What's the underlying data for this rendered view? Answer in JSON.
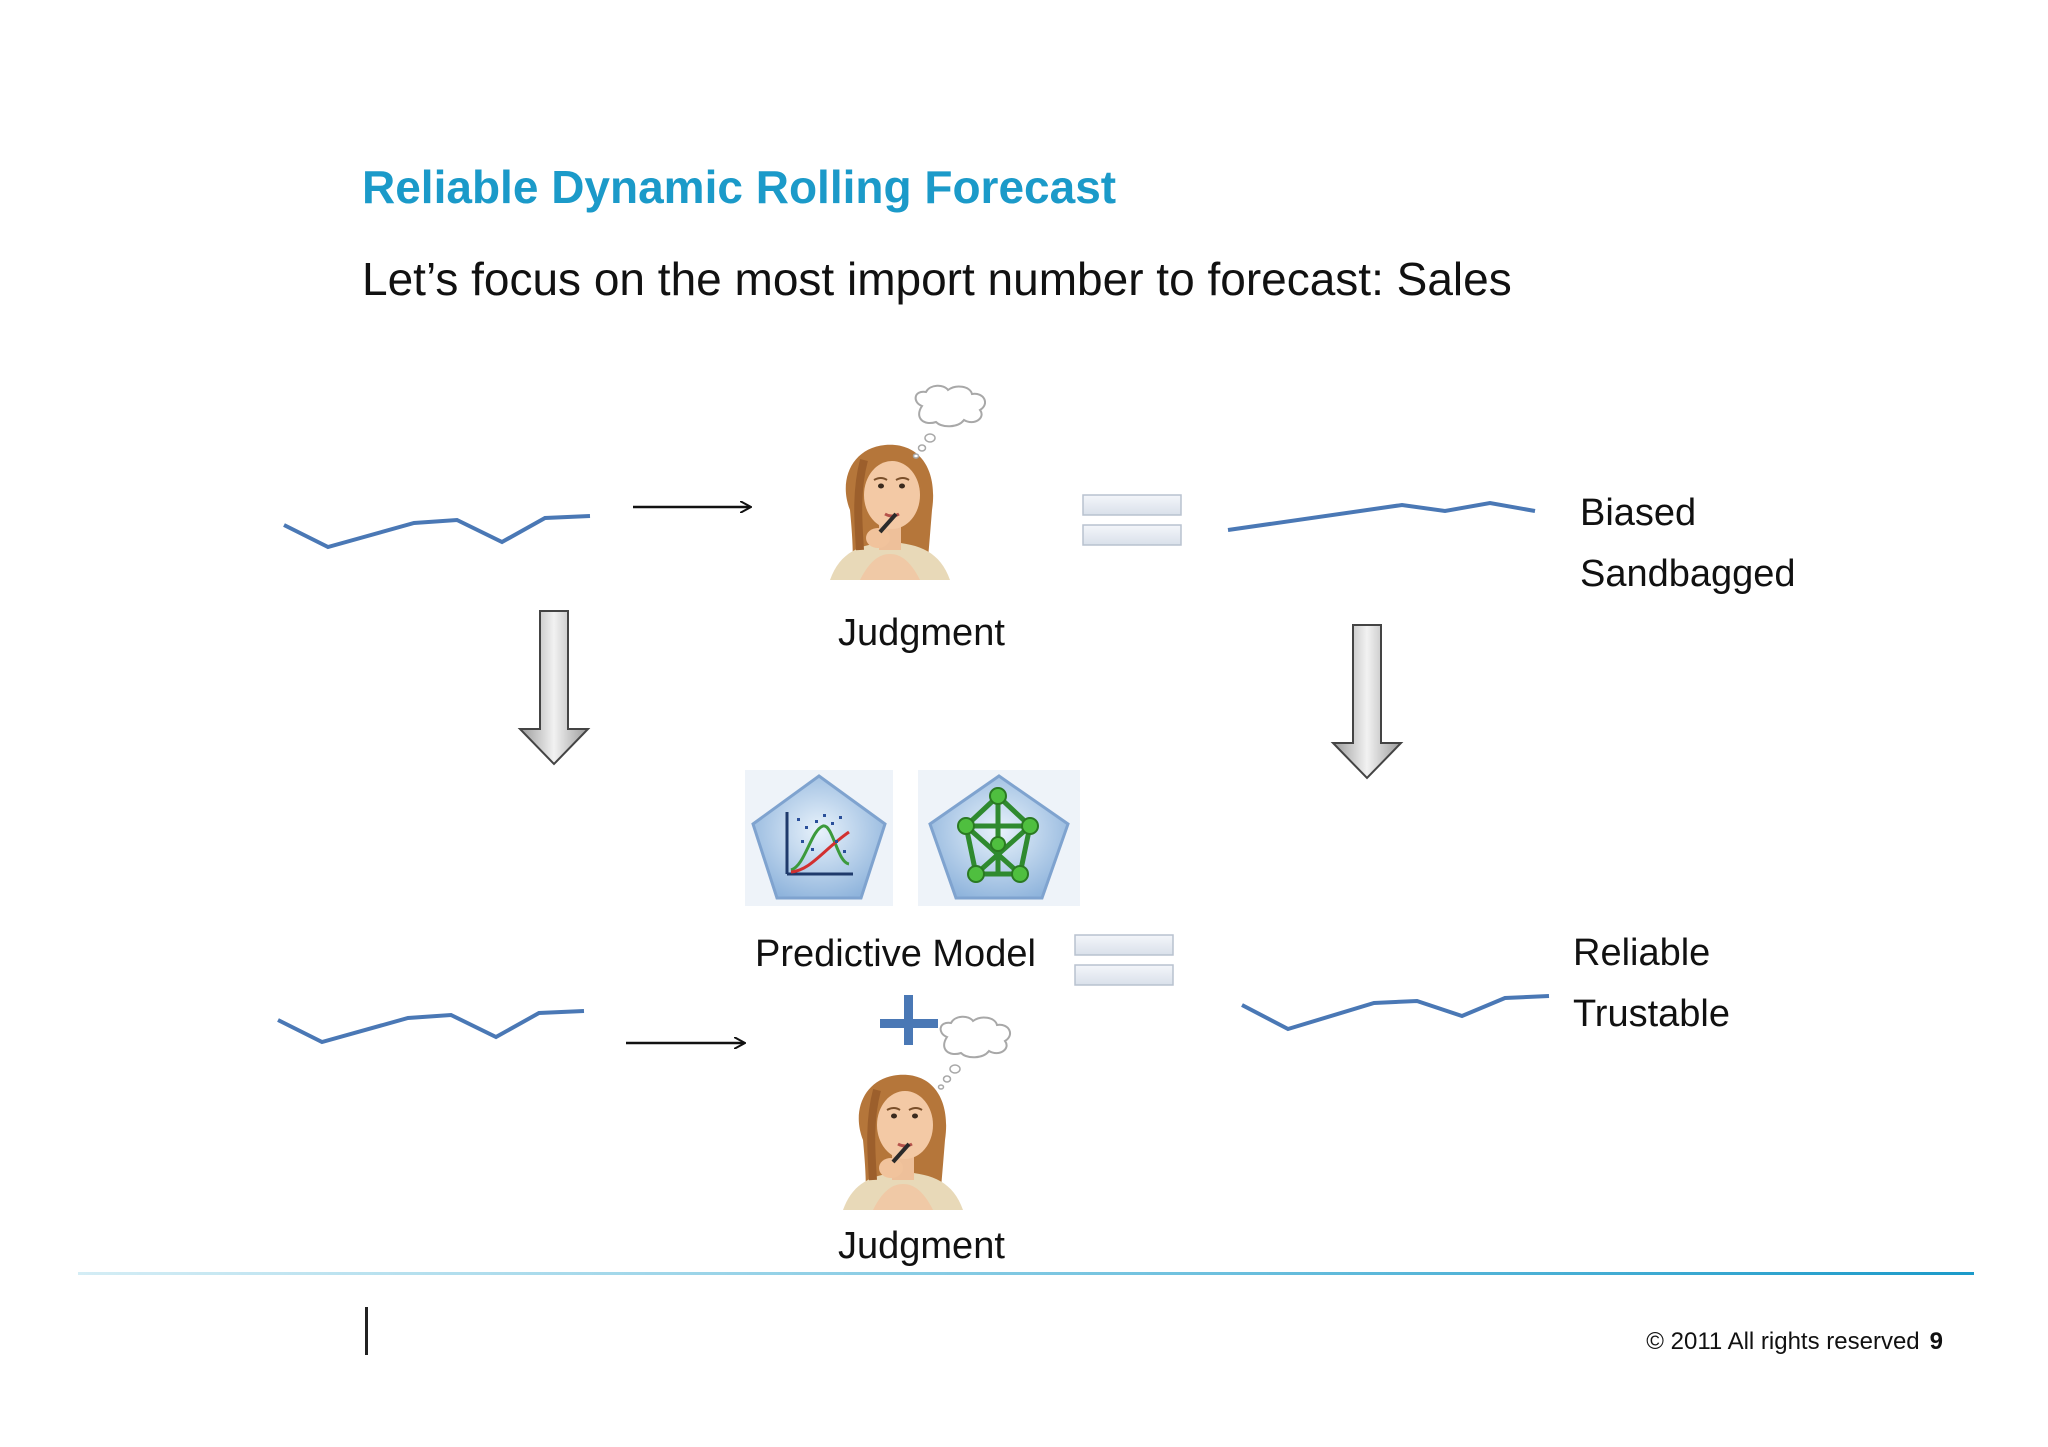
{
  "title": "Reliable Dynamic Rolling Forecast",
  "subtitle": "Let’s focus on the most import number to forecast: Sales",
  "top_row": {
    "judgment_label": "Judgment",
    "outcome_labels": [
      "Biased",
      "Sandbagged"
    ]
  },
  "bottom_row": {
    "model_label": "Predictive Model",
    "judgment_label": "Judgment",
    "outcome_labels": [
      "Reliable",
      "Trustable"
    ]
  },
  "icons": {
    "person": "thinking-woman-icon",
    "thought": "thought-bubble-icon",
    "model_1": "statistical-model-icon",
    "model_2": "neural-network-icon",
    "equals": "equals-icon",
    "plus": "plus-icon",
    "arrow_right": "arrow-right-icon",
    "arrow_down": "arrow-down-icon"
  },
  "colors": {
    "title": "#1b9ac9",
    "line": "#4a78b5",
    "plus": "#4a78b5"
  },
  "footer": {
    "copyright": "© 2011 All rights reserved",
    "page_number": "9"
  }
}
